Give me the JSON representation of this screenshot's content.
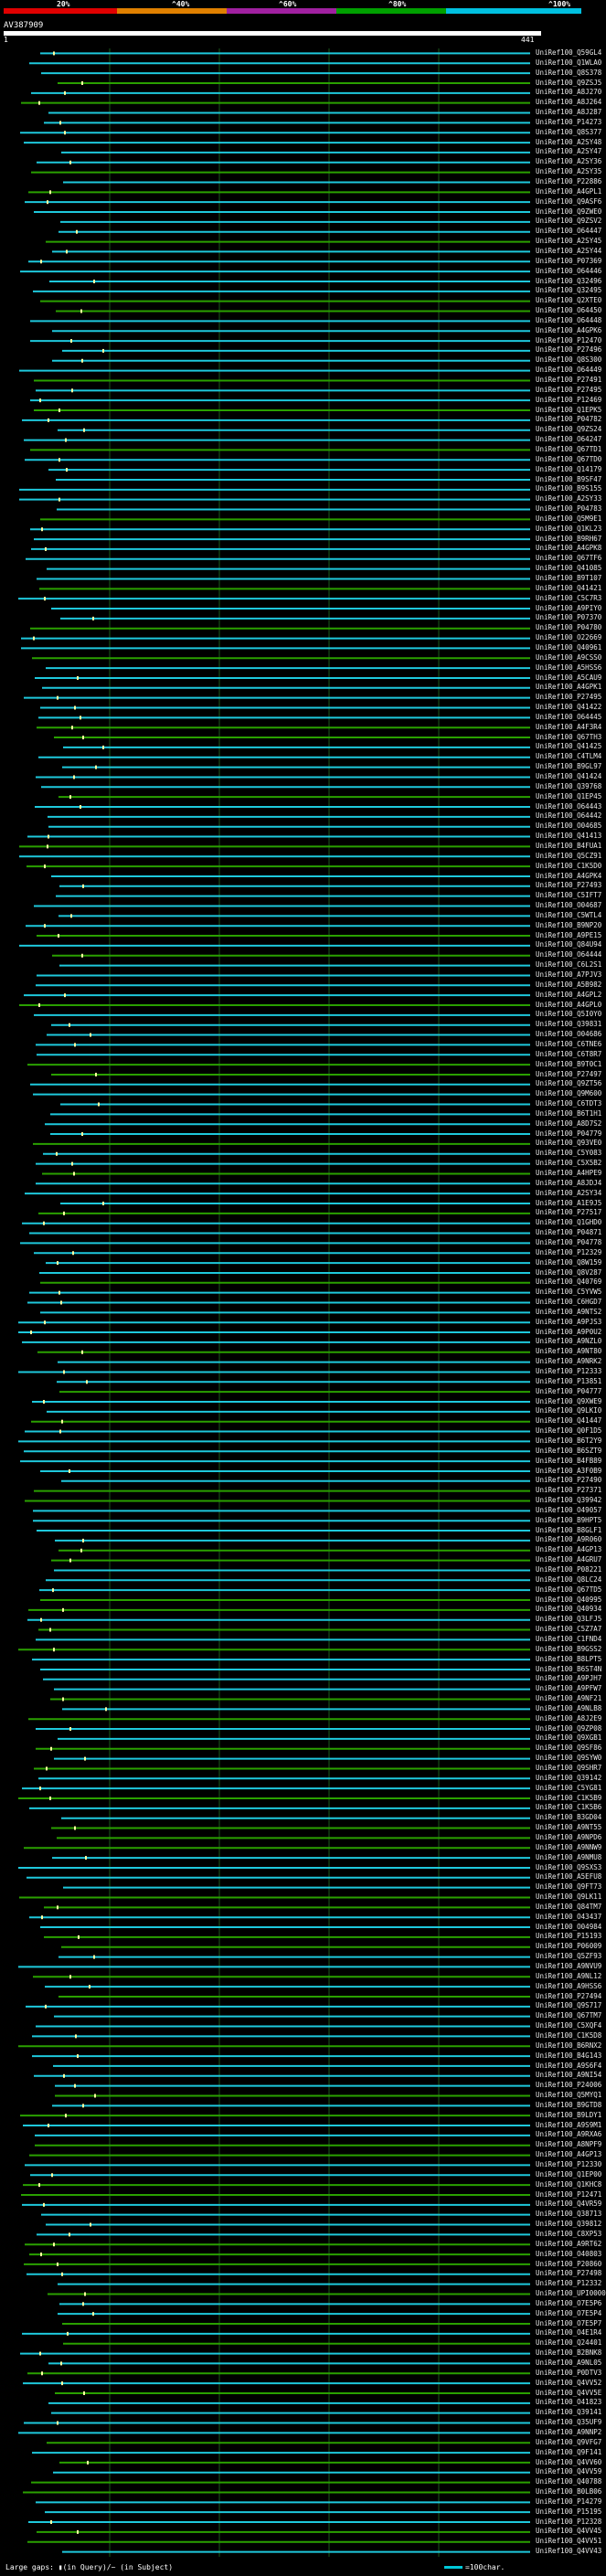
{
  "scale": {
    "labels": [
      "20%",
      "^40%",
      "^60%",
      "^80%",
      "^100%"
    ],
    "colors": [
      "#e00000",
      "#e08000",
      "#a020a0",
      "#00a000",
      "#00c0e0"
    ]
  },
  "query": {
    "id": "AV387909",
    "start": "1",
    "end": "441"
  },
  "legend": {
    "gaps_text": "Large gaps: ▮(in Query)/~ (in Subject)",
    "scale_text": "=100char."
  },
  "colors": {
    "cyan": "#1ec8dc",
    "green": "#2aa000",
    "grid": "#1a5a1a",
    "background": "#000000"
  },
  "hits": [
    "UniRef100_Q59GL4",
    "UniRef100_Q1WLA0",
    "UniRef100_Q8S378",
    "UniRef100_Q9ZSJ5",
    "UniRef100_A8J270",
    "UniRef100_A8J264",
    "UniRef100_A8J287",
    "UniRef100_P14273",
    "UniRef100_Q8S377",
    "UniRef100_A2SY48",
    "UniRef100_A2SY47",
    "UniRef100_A2SY36",
    "UniRef100_A2SY35",
    "UniRef100_P22886",
    "UniRef100_A4GPL1",
    "UniRef100_Q9ASF6",
    "UniRef100_Q9ZWE0",
    "UniRef100_Q9ZSV2",
    "UniRef100_O64447",
    "UniRef100_A2SY45",
    "UniRef100_A2SY44",
    "UniRef100_P07369",
    "UniRef100_O64446",
    "UniRef100_Q32496",
    "UniRef100_Q32495",
    "UniRef100_Q2XTE0",
    "UniRef100_O64450",
    "UniRef100_O64448",
    "UniRef100_A4GPK6",
    "UniRef100_P12470",
    "UniRef100_P27496",
    "UniRef100_Q8S300",
    "UniRef100_O64449",
    "UniRef100_P27491",
    "UniRef100_P27495",
    "UniRef100_P12469",
    "UniRef100_Q1EPK5",
    "UniRef100_P04782",
    "UniRef100_Q9ZS24",
    "UniRef100_O64247",
    "UniRef100_Q67TD1",
    "UniRef100_Q67TD0",
    "UniRef100_Q14179",
    "UniRef100_B9SF47",
    "UniRef100_B9S155",
    "UniRef100_A2SY33",
    "UniRef100_P04783",
    "UniRef100_Q5M9E1",
    "UniRef100_Q1KL23",
    "UniRef100_B9RH67",
    "UniRef100_A4GPK8",
    "UniRef100_Q67TF6",
    "UniRef100_Q41085",
    "UniRef100_B9T107",
    "UniRef100_Q41421",
    "UniRef100_C5C7R3",
    "UniRef100_A9PIY0",
    "UniRef100_P07370",
    "UniRef100_P04780",
    "UniRef100_O22669",
    "UniRef100_Q40961",
    "UniRef100_A9CSS0",
    "UniRef100_A5HSS6",
    "UniRef100_A5CAU9",
    "UniRef100_A4GPK1",
    "UniRef100_P27495",
    "UniRef100_Q41422",
    "UniRef100_O64445",
    "UniRef100_A4F3R4",
    "UniRef100_Q67TH3",
    "UniRef100_Q41425",
    "UniRef100_C4TLM4",
    "UniRef100_B9GL97",
    "UniRef100_Q41424",
    "UniRef100_Q39768",
    "UniRef100_Q1EP45",
    "UniRef100_O64443",
    "UniRef100_O64442",
    "UniRef100_O04685",
    "UniRef100_Q41413",
    "UniRef100_B4FUA1",
    "UniRef100_Q5CZ91",
    "UniRef100_C1K5D0",
    "UniRef100_A4GPK4",
    "UniRef100_P27493",
    "UniRef100_C5IFT7",
    "UniRef100_O04687",
    "UniRef100_C5WTL4",
    "UniRef100_B9NP20",
    "UniRef100_A9PE15",
    "UniRef100_Q84U94",
    "UniRef100_O64444",
    "UniRef100_C6L2S1",
    "UniRef100_A7PJV3",
    "UniRef100_A5B982",
    "UniRef100_A4GPL2",
    "UniRef100_A4GPL0",
    "UniRef100_Q5I0Y0",
    "UniRef100_Q39831",
    "UniRef100_O04686",
    "UniRef100_C6TNE6",
    "UniRef100_C6T8R7",
    "UniRef100_B9T0C1",
    "UniRef100_P27497",
    "UniRef100_Q9ZT56",
    "UniRef100_Q9M600",
    "UniRef100_C6TDT3",
    "UniRef100_B6T1H1",
    "UniRef100_A8D7S2",
    "UniRef100_P04779",
    "UniRef100_Q93VE0",
    "UniRef100_C5Y083",
    "UniRef100_C5X5B2",
    "UniRef100_A4HPE9",
    "UniRef100_A8JDJ4",
    "UniRef100_A2SY34",
    "UniRef100_A1E9J5",
    "UniRef100_P27517",
    "UniRef100_Q1GHD0",
    "UniRef100_P04871",
    "UniRef100_P04778",
    "UniRef100_P12329",
    "UniRef100_Q8W159",
    "UniRef100_Q8V287",
    "UniRef100_Q40769",
    "UniRef100_C5YVW5",
    "UniRef100_C6HGD7",
    "UniRef100_A9NTS2",
    "UniRef100_A9PJS3",
    "UniRef100_A9P0U2",
    "UniRef100_A9NZL0",
    "UniRef100_A9NT80",
    "UniRef100_A9NRK2",
    "UniRef100_P12333",
    "UniRef100_P13851",
    "UniRef100_P04777",
    "UniRef100_Q9XWE9",
    "UniRef100_Q9LKI0",
    "UniRef100_Q41447",
    "UniRef100_Q0F1D5",
    "UniRef100_B6T2Y9",
    "UniRef100_B6SZT9",
    "UniRef100_B4FB89",
    "UniRef100_A3F0B9",
    "UniRef100_P27490",
    "UniRef100_P27371",
    "UniRef100_Q39942",
    "UniRef100_O49057",
    "UniRef100_B9HPT5",
    "UniRef100_B8GLF1",
    "UniRef100_A9R060",
    "UniRef100_A4GP13",
    "UniRef100_A4GRU7",
    "UniRef100_P08221",
    "UniRef100_Q8LC24",
    "UniRef100_Q67TD5",
    "UniRef100_Q40995",
    "UniRef100_Q40934",
    "UniRef100_Q3LFJ5",
    "UniRef100_C5Z7A7",
    "UniRef100_C1FND4",
    "UniRef100_B9GSS2",
    "UniRef100_B8LPT5",
    "UniRef100_B6ST4N",
    "UniRef100_A9PJH7",
    "UniRef100_A9PFW7",
    "UniRef100_A9NF21",
    "UniRef100_A9NLB8",
    "UniRef100_A8J2E9",
    "UniRef100_Q9ZP08",
    "UniRef100_Q9XGB1",
    "UniRef100_Q9SF86",
    "UniRef100_Q9SYW0",
    "UniRef100_Q9SHR7",
    "UniRef100_Q39142",
    "UniRef100_C5YG81",
    "UniRef100_C1K5B9",
    "UniRef100_C1K5B6",
    "UniRef100_B3GD04",
    "UniRef100_A9NT55",
    "UniRef100_A9NPD6",
    "UniRef100_A9NNW9",
    "UniRef100_A9NMU8",
    "UniRef100_Q9SXS3",
    "UniRef100_A5EFU8",
    "UniRef100_Q9FT73",
    "UniRef100_Q9LK11",
    "UniRef100_Q84TM7",
    "UniRef100_O43437",
    "UniRef100_O04984",
    "UniRef100_P15193",
    "UniRef100_P06009",
    "UniRef100_Q5ZF93",
    "UniRef100_A9NVU9",
    "UniRef100_A9NL12",
    "UniRef100_A9HSS6",
    "UniRef100_P27494",
    "UniRef100_Q9S717",
    "UniRef100_Q67TM7",
    "UniRef100_C5XQF4",
    "UniRef100_C1K5D8",
    "UniRef100_B6RNX2",
    "UniRef100_B4G143",
    "UniRef100_A9S6F4",
    "UniRef100_A9NI54",
    "UniRef100_P24006",
    "UniRef100_Q5MYQ1",
    "UniRef100_B9GTD8",
    "UniRef100_B9LDY1",
    "UniRef100_A9S9M1",
    "UniRef100_A9RXA6",
    "UniRef100_A8NPF9",
    "UniRef100_A4GP13",
    "UniRef100_P12330",
    "UniRef100_Q1EP00",
    "UniRef100_Q1KHC8",
    "UniRef100_P12471",
    "UniRef100_Q4VR59",
    "UniRef100_Q38713",
    "UniRef100_Q39812",
    "UniRef100_C8XP53",
    "UniRef100_A9RT62",
    "UniRef100_O40803",
    "UniRef100_P20860",
    "UniRef100_P27498",
    "UniRef100_P12332",
    "UniRef100_UPI0000",
    "UniRef100_O7E5P6",
    "UniRef100_O7E5P4",
    "UniRef100_O7E5P7",
    "UniRef100_O4E1R4",
    "UniRef100_Q24401",
    "UniRef100_B2BNK8",
    "UniRef100_A9NL05",
    "UniRef100_P0DTV3",
    "UniRef100_Q4VV52",
    "UniRef100_Q4VV5E",
    "UniRef100_O41823",
    "UniRef100_Q39141",
    "UniRef100_Q35UF9",
    "UniRef100_A9NNP2",
    "UniRef100_Q9VFG7",
    "UniRef100_Q9F141",
    "UniRef100_Q4VV60",
    "UniRef100_Q4VV59",
    "UniRef100_Q40788",
    "UniRef100_B0LB06",
    "UniRef100_P14279",
    "UniRef100_P15195",
    "UniRef100_P12328",
    "UniRef100_Q4VV45",
    "UniRef100_Q4VV51",
    "UniRef100_Q4VV43"
  ]
}
